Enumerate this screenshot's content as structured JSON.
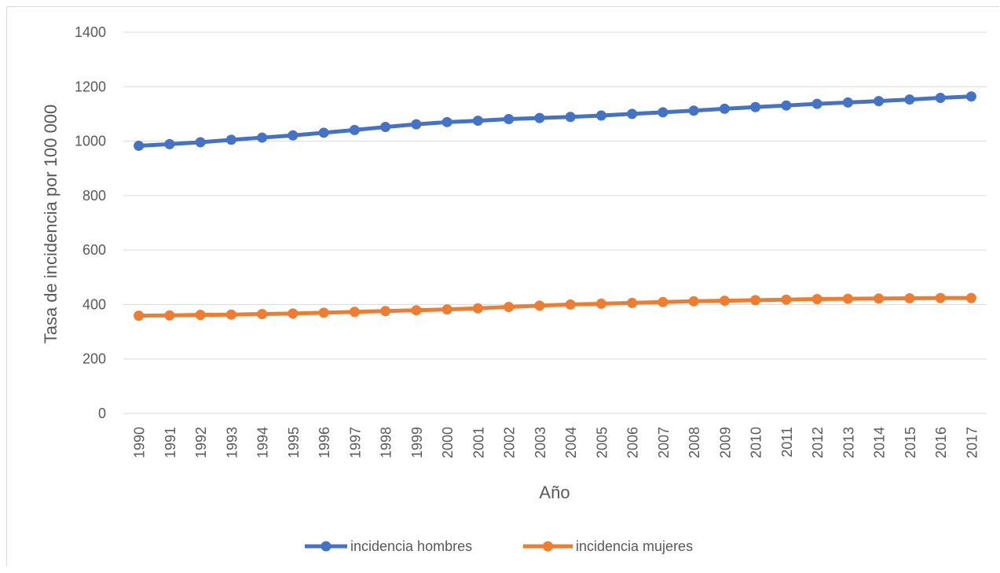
{
  "chart_data": {
    "type": "line",
    "title": "",
    "xlabel": "Año",
    "ylabel": "Tasa de incidencia por 100 000",
    "ylim": [
      0,
      1400
    ],
    "yticks": [
      0,
      200,
      400,
      600,
      800,
      1000,
      1200,
      1400
    ],
    "grid": true,
    "legend": "bottom",
    "categories": [
      "1990",
      "1991",
      "1992",
      "1993",
      "1994",
      "1995",
      "1996",
      "1997",
      "1998",
      "1999",
      "2000",
      "2001",
      "2002",
      "2003",
      "2004",
      "2005",
      "2006",
      "2007",
      "2008",
      "2009",
      "2010",
      "2011",
      "2012",
      "2013",
      "2014",
      "2015",
      "2016",
      "2017"
    ],
    "series": [
      {
        "name": "incidencia hombres",
        "color": "#4472C4",
        "values": [
          983,
          989,
          996,
          1005,
          1013,
          1021,
          1031,
          1041,
          1052,
          1062,
          1070,
          1075,
          1081,
          1085,
          1089,
          1094,
          1100,
          1106,
          1112,
          1119,
          1125,
          1131,
          1137,
          1142,
          1147,
          1153,
          1159,
          1164
        ]
      },
      {
        "name": "incidencia mujeres",
        "color": "#ED7D31",
        "values": [
          359,
          360,
          362,
          363,
          365,
          367,
          370,
          373,
          376,
          379,
          382,
          386,
          391,
          396,
          400,
          403,
          406,
          409,
          412,
          414,
          416,
          418,
          420,
          421,
          422,
          423,
          424,
          424
        ]
      }
    ]
  }
}
